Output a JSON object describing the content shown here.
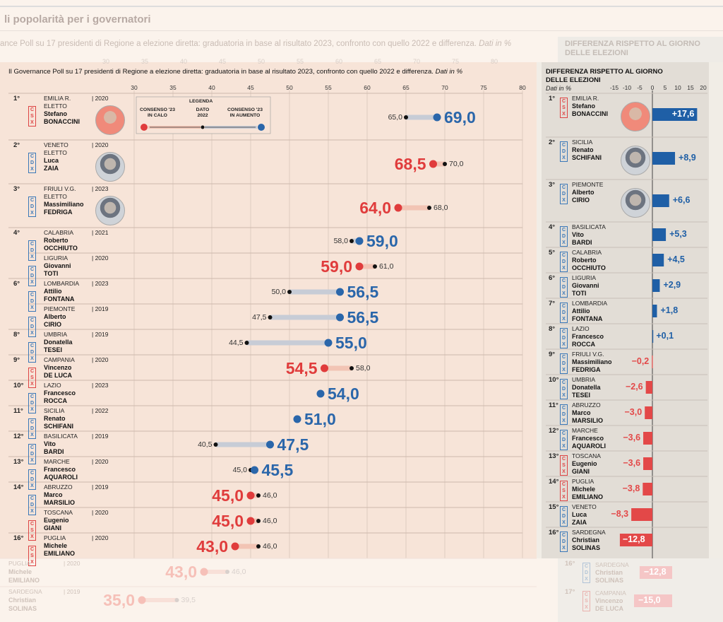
{
  "header": {
    "title": "li popolarità per i governatori",
    "subtitle_ghost": "ance Poll su 17 presidenti di Regione a elezione diretta: graduatoria in base al risultato 2023, confronto con quello 2022 e differenza.",
    "subtitle": "Il Governance Poll su 17 presidenti di Regione a elezione diretta: graduatoria in base al risultato 2023, confronto con quello 2022 e differenza.",
    "subtitle_em": "Dati in %",
    "right_title": "DIFFERENZA RISPETTO AL GIORNO DELLE ELEZIONI",
    "right_title_l1": "DIFFERENZA RISPETTO AL GIORNO",
    "right_title_l2": "DELLE ELEZIONI",
    "right_sub": "Dati in %",
    "ghost_right_title_l1": "DIFFERENZA RISPETTO AL GIORNO",
    "ghost_right_title_l2": "DELLE ELEZIONI",
    "eletto_label": "ELETTO"
  },
  "legend": {
    "title": "LEGENDA",
    "calo_l1": "CONSENSO '23",
    "calo_l2": "IN CALO",
    "dato_l1": "DATO",
    "dato_l2": "2022",
    "aumento_l1": "CONSENSO '23",
    "aumento_l2": "IN AUMENTO"
  },
  "colors": {
    "up": "#2a66aa",
    "down": "#e03c3c",
    "line_up": "#c7ccd6",
    "line_down": "#f2c4b4",
    "bar_up": "#1f5fa6",
    "bar_down": "#e34848",
    "left_bg": "#f7e4d8",
    "right_bg": "#e2ddd6"
  },
  "chart_data": [
    {
      "type": "dot-range",
      "title": "",
      "x_ticks": [
        30,
        35,
        40,
        45,
        50,
        55,
        60,
        65,
        70,
        75,
        80
      ],
      "xlim": [
        30,
        80
      ],
      "rows": [
        {
          "rank": "1°",
          "party": "CSX",
          "region": "EMILIA R.",
          "year": "2020",
          "eletto": true,
          "first": "Stefano",
          "last": "BONACCINI",
          "v2022": 65.0,
          "v2023": 69.0,
          "s2022": "65,0",
          "s2023": "69,0",
          "avatar": "avatar-red"
        },
        {
          "rank": "2°",
          "party": "CDX",
          "region": "VENETO",
          "year": "2020",
          "eletto": true,
          "first": "Luca",
          "last": "ZAIA",
          "v2022": 70.0,
          "v2023": 68.5,
          "s2022": "70,0",
          "s2023": "68,5",
          "avatar": "avatar-gray"
        },
        {
          "rank": "3°",
          "party": "CDX",
          "region": "FRIULI V.G.",
          "year": "2023",
          "eletto": true,
          "first": "Massimiliano",
          "last": "FEDRIGA",
          "v2022": 68.0,
          "v2023": 64.0,
          "s2022": "68,0",
          "s2023": "64,0",
          "avatar": "avatar-gray"
        },
        {
          "rank": "4°",
          "party": "CDX",
          "region": "CALABRIA",
          "year": "2021",
          "eletto": false,
          "first": "Roberto",
          "last": "OCCHIUTO",
          "v2022": 58.0,
          "v2023": 59.0,
          "s2022": "58,0",
          "s2023": "59,0"
        },
        {
          "rank": "",
          "party": "CDX",
          "region": "LIGURIA",
          "year": "2020",
          "eletto": false,
          "first": "Giovanni",
          "last": "TOTI",
          "v2022": 61.0,
          "v2023": 59.0,
          "s2022": "61,0",
          "s2023": "59,0"
        },
        {
          "rank": "6°",
          "party": "CDX",
          "region": "LOMBARDIA",
          "year": "2023",
          "eletto": false,
          "first": "Attilio",
          "last": "FONTANA",
          "v2022": 50.0,
          "v2023": 56.5,
          "s2022": "50,0",
          "s2023": "56,5"
        },
        {
          "rank": "",
          "party": "CDX",
          "region": "PIEMONTE",
          "year": "2019",
          "eletto": false,
          "first": "Alberto",
          "last": "CIRIO",
          "v2022": 47.5,
          "v2023": 56.5,
          "s2022": "47,5",
          "s2023": "56,5"
        },
        {
          "rank": "8°",
          "party": "CDX",
          "region": "UMBRIA",
          "year": "2019",
          "eletto": false,
          "first": "Donatella",
          "last": "TESEI",
          "v2022": 44.5,
          "v2023": 55.0,
          "s2022": "44,5",
          "s2023": "55,0"
        },
        {
          "rank": "9°",
          "party": "CSX",
          "region": "CAMPANIA",
          "year": "2020",
          "eletto": false,
          "first": "Vincenzo",
          "last": "DE LUCA",
          "v2022": 58.0,
          "v2023": 54.5,
          "s2022": "58,0",
          "s2023": "54,5"
        },
        {
          "rank": "10°",
          "party": "CDX",
          "region": "LAZIO",
          "year": "2023",
          "eletto": false,
          "first": "Francesco",
          "last": "ROCCA",
          "v2022": null,
          "v2023": 54.0,
          "s2022": "",
          "s2023": "54,0"
        },
        {
          "rank": "11°",
          "party": "CDX",
          "region": "SICILIA",
          "year": "2022",
          "eletto": false,
          "first": "Renato",
          "last": "SCHIFANI",
          "v2022": null,
          "v2023": 51.0,
          "s2022": "",
          "s2023": "51,0"
        },
        {
          "rank": "12°",
          "party": "CDX",
          "region": "BASILICATA",
          "year": "2019",
          "eletto": false,
          "first": "Vito",
          "last": "BARDI",
          "v2022": 40.5,
          "v2023": 47.5,
          "s2022": "40,5",
          "s2023": "47,5"
        },
        {
          "rank": "13°",
          "party": "CDX",
          "region": "MARCHE",
          "year": "2020",
          "eletto": false,
          "first": "Francesco",
          "last": "AQUAROLI",
          "v2022": 45.0,
          "v2023": 45.5,
          "s2022": "45,0",
          "s2023": "45,5"
        },
        {
          "rank": "14°",
          "party": "CDX",
          "region": "ABRUZZO",
          "year": "2019",
          "eletto": false,
          "first": "Marco",
          "last": "MARSILIO",
          "v2022": 46.0,
          "v2023": 45.0,
          "s2022": "46,0",
          "s2023": "45,0"
        },
        {
          "rank": "",
          "party": "CSX",
          "region": "TOSCANA",
          "year": "2020",
          "eletto": false,
          "first": "Eugenio",
          "last": "GIANI",
          "v2022": 46.0,
          "v2023": 45.0,
          "s2022": "46,0",
          "s2023": "45,0"
        },
        {
          "rank": "16°",
          "party": "CSX",
          "region": "PUGLIA",
          "year": "2020",
          "eletto": false,
          "first": "Michele",
          "last": "EMILIANO",
          "v2022": 46.0,
          "v2023": 43.0,
          "s2022": "46,0",
          "s2023": "43,0"
        }
      ],
      "ghost_rows": [
        {
          "region": "PUGLIA",
          "year": "2020",
          "first": "Michele",
          "last": "EMILIANO",
          "v2022": 46.0,
          "v2023": 43.0,
          "s2022": "46,0",
          "s2023": "43,0"
        },
        {
          "region": "SARDEGNA",
          "year": "2019",
          "first": "Christian",
          "last": "SOLINAS",
          "v2022": 39.5,
          "v2023": 35.0,
          "s2022": "39,5",
          "s2023": "35,0"
        }
      ]
    },
    {
      "type": "bar",
      "title": "DIFFERENZA RISPETTO AL GIORNO DELLE ELEZIONI",
      "x_ticks": [
        "-15",
        "-10",
        "-5",
        "0",
        "5",
        "10",
        "15",
        "20"
      ],
      "x_tick_values": [
        -15,
        -10,
        -5,
        0,
        5,
        10,
        15,
        20
      ],
      "xlim": [
        -15,
        20
      ],
      "rows": [
        {
          "rank": "1°",
          "party": "CSX",
          "region": "EMILIA R.",
          "first": "Stefano",
          "last": "BONACCINI",
          "value": 17.6,
          "label": "+17,6",
          "avatar": "avatar-red"
        },
        {
          "rank": "2°",
          "party": "CDX",
          "region": "SICILIA",
          "first": "Renato",
          "last": "SCHIFANI",
          "value": 8.9,
          "label": "+8,9",
          "avatar": "avatar-gray"
        },
        {
          "rank": "3°",
          "party": "CDX",
          "region": "PIEMONTE",
          "first": "Alberto",
          "last": "CIRIO",
          "value": 6.6,
          "label": "+6,6",
          "avatar": "avatar-gray"
        },
        {
          "rank": "4°",
          "party": "CDX",
          "region": "BASILICATA",
          "first": "Vito",
          "last": "BARDI",
          "value": 5.3,
          "label": "+5,3"
        },
        {
          "rank": "5°",
          "party": "CDX",
          "region": "CALABRIA",
          "first": "Roberto",
          "last": "OCCHIUTO",
          "value": 4.5,
          "label": "+4,5"
        },
        {
          "rank": "6°",
          "party": "CDX",
          "region": "LIGURIA",
          "first": "Giovanni",
          "last": "TOTI",
          "value": 2.9,
          "label": "+2,9"
        },
        {
          "rank": "7°",
          "party": "CDX",
          "region": "LOMBARDIA",
          "first": "Attilio",
          "last": "FONTANA",
          "value": 1.8,
          "label": "+1,8"
        },
        {
          "rank": "8°",
          "party": "CDX",
          "region": "LAZIO",
          "first": "Francesco",
          "last": "ROCCA",
          "value": 0.1,
          "label": "+0,1"
        },
        {
          "rank": "9°",
          "party": "CDX",
          "region": "FRIULI V.G.",
          "first": "Massimiliano",
          "last": "FEDRIGA",
          "value": -0.2,
          "label": "−0,2"
        },
        {
          "rank": "10°",
          "party": "CDX",
          "region": "UMBRIA",
          "first": "Donatella",
          "last": "TESEI",
          "value": -2.6,
          "label": "−2,6"
        },
        {
          "rank": "11°",
          "party": "CDX",
          "region": "ABRUZZO",
          "first": "Marco",
          "last": "MARSILIO",
          "value": -3.0,
          "label": "−3,0"
        },
        {
          "rank": "12°",
          "party": "CDX",
          "region": "MARCHE",
          "first": "Francesco",
          "last": "AQUAROLI",
          "value": -3.6,
          "label": "−3,6"
        },
        {
          "rank": "13°",
          "party": "CSX",
          "region": "TOSCANA",
          "first": "Eugenio",
          "last": "GIANI",
          "value": -3.6,
          "label": "−3,6"
        },
        {
          "rank": "14°",
          "party": "CSX",
          "region": "PUGLIA",
          "first": "Michele",
          "last": "EMILIANO",
          "value": -3.8,
          "label": "−3,8"
        },
        {
          "rank": "15°",
          "party": "CDX",
          "region": "VENETO",
          "first": "Luca",
          "last": "ZAIA",
          "value": -8.3,
          "label": "−8,3"
        },
        {
          "rank": "16°",
          "party": "CDX",
          "region": "SARDEGNA",
          "first": "Christian",
          "last": "SOLINAS",
          "value": -12.8,
          "label": "−12,8"
        }
      ],
      "ghost_rows": [
        {
          "rank": "16°",
          "party": "CDX",
          "region": "SARDEGNA",
          "first": "Christian",
          "last": "SOLINAS",
          "value": -12.8,
          "label": "−12,8"
        },
        {
          "rank": "17°",
          "party": "CSX",
          "region": "CAMPANIA",
          "first": "Vincenzo",
          "last": "DE LUCA",
          "value": -15.0,
          "label": "−15,0"
        }
      ]
    }
  ]
}
